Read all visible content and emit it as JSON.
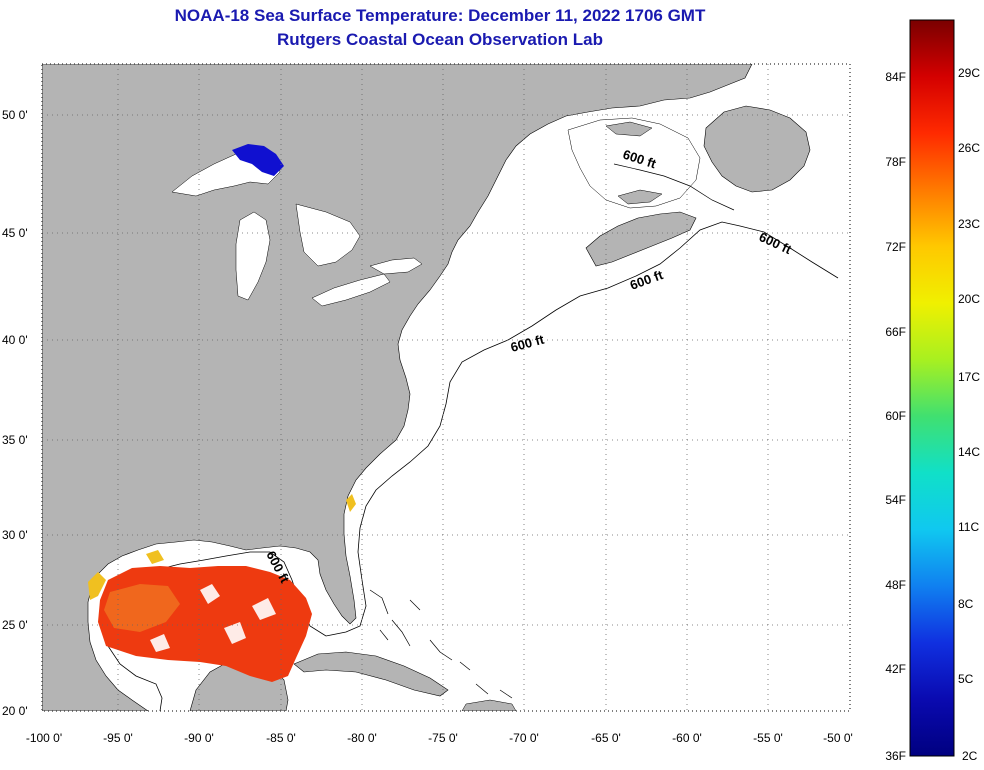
{
  "header": {
    "title": "NOAA-18 Sea Surface Temperature:  December 11, 2022 1706 GMT",
    "subtitle": "Rutgers Coastal Ocean Observation Lab"
  },
  "map": {
    "extent": {
      "lon": [
        -100,
        -50
      ],
      "lat": [
        20,
        52.5
      ]
    },
    "lat_ticks": [
      "50 0'",
      "45 0'",
      "40 0'",
      "35 0'",
      "30 0'",
      "25 0'",
      "20 0'"
    ],
    "lon_ticks": [
      "-100 0'",
      "-95 0'",
      "-90 0'",
      "-85 0'",
      "-80 0'",
      "-75 0'",
      "-70 0'",
      "-65 0'",
      "-60 0'",
      "-55 0'",
      "-50 0'"
    ],
    "contour_labels": [
      "600 ft",
      "600 ft",
      "600 ft",
      "600 ft",
      "600 ft"
    ],
    "colors": {
      "land": "#b4b4b4",
      "ocean": "#ffffff",
      "sst_warm": "#ee3a10",
      "sst_mid": "#f07020",
      "sst_edge": "#f0c020",
      "sst_cold": "#1010d0"
    }
  },
  "colorbar": {
    "range_f": [
      36,
      88
    ],
    "fahrenheit_labels": [
      "84F",
      "78F",
      "72F",
      "66F",
      "60F",
      "54F",
      "48F",
      "42F",
      "36F"
    ],
    "celsius_labels": [
      "29C",
      "26C",
      "23C",
      "20C",
      "17C",
      "14C",
      "11C",
      "8C",
      "5C",
      "2C"
    ],
    "gradient_colors": [
      "#7a0000",
      "#d40000",
      "#ff2a00",
      "#ff7a00",
      "#ffc800",
      "#f0f000",
      "#a8f020",
      "#40e070",
      "#10e0c8",
      "#10c8f0",
      "#1080f0",
      "#1030e0",
      "#0a0ab0",
      "#000080"
    ]
  }
}
